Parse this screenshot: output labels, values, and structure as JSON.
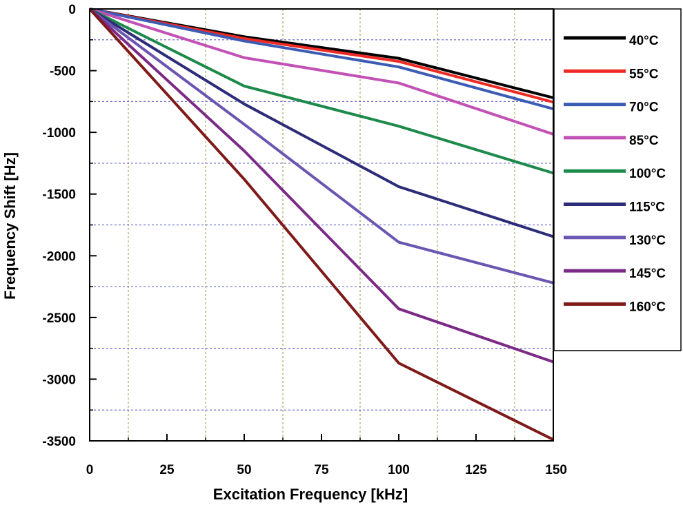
{
  "chart_data": {
    "type": "line",
    "title": "",
    "xlabel": "Excitation Frequency [kHz]",
    "ylabel": "Frequency Shift [Hz]",
    "xlim": [
      0,
      150
    ],
    "ylim": [
      -3500,
      0
    ],
    "xticks": [
      "0",
      "25",
      "50",
      "75",
      "100",
      "125",
      "150"
    ],
    "yticks": [
      "0",
      "-500",
      "-1000",
      "-1500",
      "-2000",
      "-2500",
      "-3000",
      "-3500"
    ],
    "x": [
      0,
      50,
      100,
      150
    ],
    "legend_position": "right",
    "grid": true,
    "series": [
      {
        "name": "40°C",
        "color": "#000000",
        "values": [
          0,
          -225,
          -400,
          -720
        ]
      },
      {
        "name": "55°C",
        "color": "#ee2a24",
        "values": [
          0,
          -240,
          -425,
          -755
        ]
      },
      {
        "name": "70°C",
        "color": "#3c5cb4",
        "values": [
          0,
          -260,
          -470,
          -810
        ]
      },
      {
        "name": "85°C",
        "color": "#c251b5",
        "values": [
          0,
          -395,
          -600,
          -1015
        ]
      },
      {
        "name": "100°C",
        "color": "#1d8a4c",
        "values": [
          0,
          -625,
          -950,
          -1330
        ]
      },
      {
        "name": "115°C",
        "color": "#2c2c78",
        "values": [
          0,
          -770,
          -1440,
          -1845
        ]
      },
      {
        "name": "130°C",
        "color": "#6a55b0",
        "values": [
          0,
          -935,
          -1890,
          -2220
        ]
      },
      {
        "name": "145°C",
        "color": "#7b2a86",
        "values": [
          0,
          -1150,
          -2430,
          -2860
        ]
      },
      {
        "name": "160°C",
        "color": "#7e1a18",
        "values": [
          0,
          -1380,
          -2870,
          -3490
        ]
      }
    ]
  }
}
